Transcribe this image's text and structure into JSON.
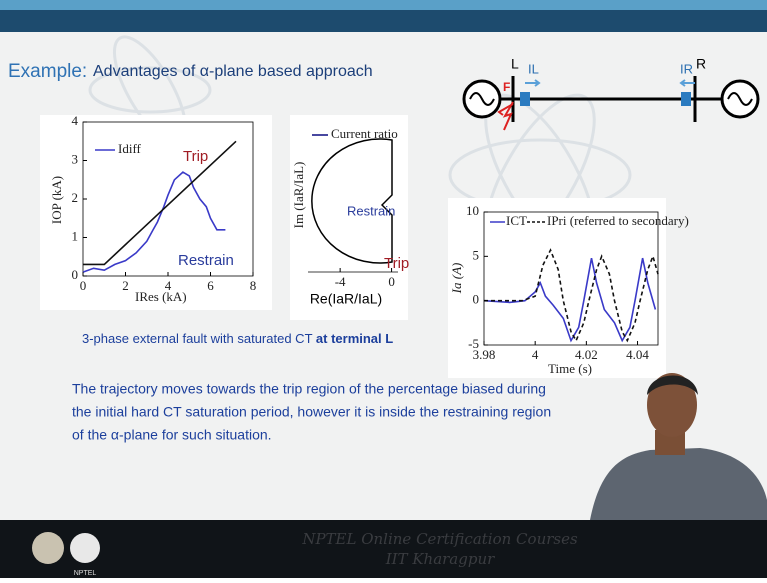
{
  "slide": {
    "title_prefix": "Example:",
    "title": "Advantages of α-plane based approach",
    "caption": "3-phase external fault with saturated CT",
    "caption_bold": "at terminal L",
    "paragraph": [
      "The trajectory moves towards the trip region of the percentage biased during",
      "the initial hard CT saturation period, however it is inside the restraining region",
      "of the α-plane for such situation."
    ]
  },
  "diagram": {
    "left_bus": "L",
    "left_current": "IL",
    "fault": "F",
    "right_bus": "R",
    "right_current": "IR"
  },
  "footer": {
    "line1": "NPTEL Online Certification Courses",
    "line2": "IIT Kharagpur",
    "logo": "NPTEL"
  },
  "chart_data": [
    {
      "type": "line",
      "ylabel": "IOP (kA)",
      "xlabel": "IRes (kA)",
      "annotations": [
        "Trip",
        "Restrain"
      ],
      "xlim": [
        0,
        8
      ],
      "ylim": [
        0,
        4
      ],
      "xticks": [
        0,
        2,
        4,
        6,
        8
      ],
      "yticks": [
        0,
        1,
        2,
        3,
        4
      ],
      "series": [
        {
          "name": "Idiff",
          "color": "#3a3ac8",
          "x": [
            0,
            0.5,
            1,
            1.5,
            2,
            2.5,
            3,
            3.3,
            3.5,
            3.8,
            4,
            4.3,
            4.7,
            5,
            5.2,
            5.5,
            5.8,
            6,
            6.3,
            6.7
          ],
          "values": [
            0.1,
            0.2,
            0.15,
            0.3,
            0.4,
            0.6,
            0.9,
            1.2,
            1.4,
            1.8,
            2.1,
            2.5,
            2.7,
            2.6,
            2.3,
            2,
            1.8,
            1.5,
            1.2,
            1.2
          ]
        },
        {
          "color": "#111111",
          "x": [
            0,
            1,
            7.2
          ],
          "values": [
            0.3,
            0.3,
            3.5
          ]
        }
      ]
    },
    {
      "type": "alpha-plane",
      "ylabel": "Im (IaR/IaL)",
      "xlabel": "Re(IaR/IaL)",
      "legend": "Current ratio",
      "annotations": [
        "Restrain",
        "Trip"
      ],
      "xlim": [
        -6.5,
        0.5
      ],
      "xticks": [
        -4,
        0
      ]
    },
    {
      "type": "line",
      "ylabel": "Ia (A)",
      "xlabel": "Time (s)",
      "xlim": [
        3.98,
        4.048
      ],
      "ylim": [
        -5,
        10
      ],
      "xticks": [
        3.98,
        4,
        4.02,
        4.04
      ],
      "yticks": [
        -5,
        0,
        5,
        10
      ],
      "series": [
        {
          "name": "ICT",
          "color": "#3a3ac8",
          "x": [
            3.98,
            3.99,
            3.996,
            4.0,
            4.002,
            4.004,
            4.007,
            4.011,
            4.014,
            4.017,
            4.019,
            4.022,
            4.024,
            4.027,
            4.031,
            4.034,
            4.037,
            4.039,
            4.042,
            4.044,
            4.047
          ],
          "values": [
            0,
            -0.2,
            0,
            1,
            2,
            0.5,
            -0.5,
            -2,
            -4.5,
            -3,
            0,
            4.8,
            2,
            -1,
            -2.5,
            -4.5,
            -3,
            0,
            4.8,
            2,
            -1
          ]
        },
        {
          "name": "IPri (referred to secondary)",
          "color": "#111111",
          "dash": true,
          "x": [
            3.98,
            3.995,
            4.0,
            4.003,
            4.006,
            4.009,
            4.011,
            4.014,
            4.016,
            4.019,
            4.021,
            4.024,
            4.026,
            4.029,
            4.031,
            4.034,
            4.036,
            4.039,
            4.041,
            4.044,
            4.046,
            4.048
          ],
          "values": [
            0,
            0,
            0.5,
            4,
            5.7,
            3.5,
            0,
            -3.5,
            -4.5,
            -2.5,
            0,
            3.5,
            5,
            3,
            0,
            -3.5,
            -4.5,
            -2.5,
            0,
            3.5,
            5,
            3
          ]
        }
      ]
    }
  ]
}
